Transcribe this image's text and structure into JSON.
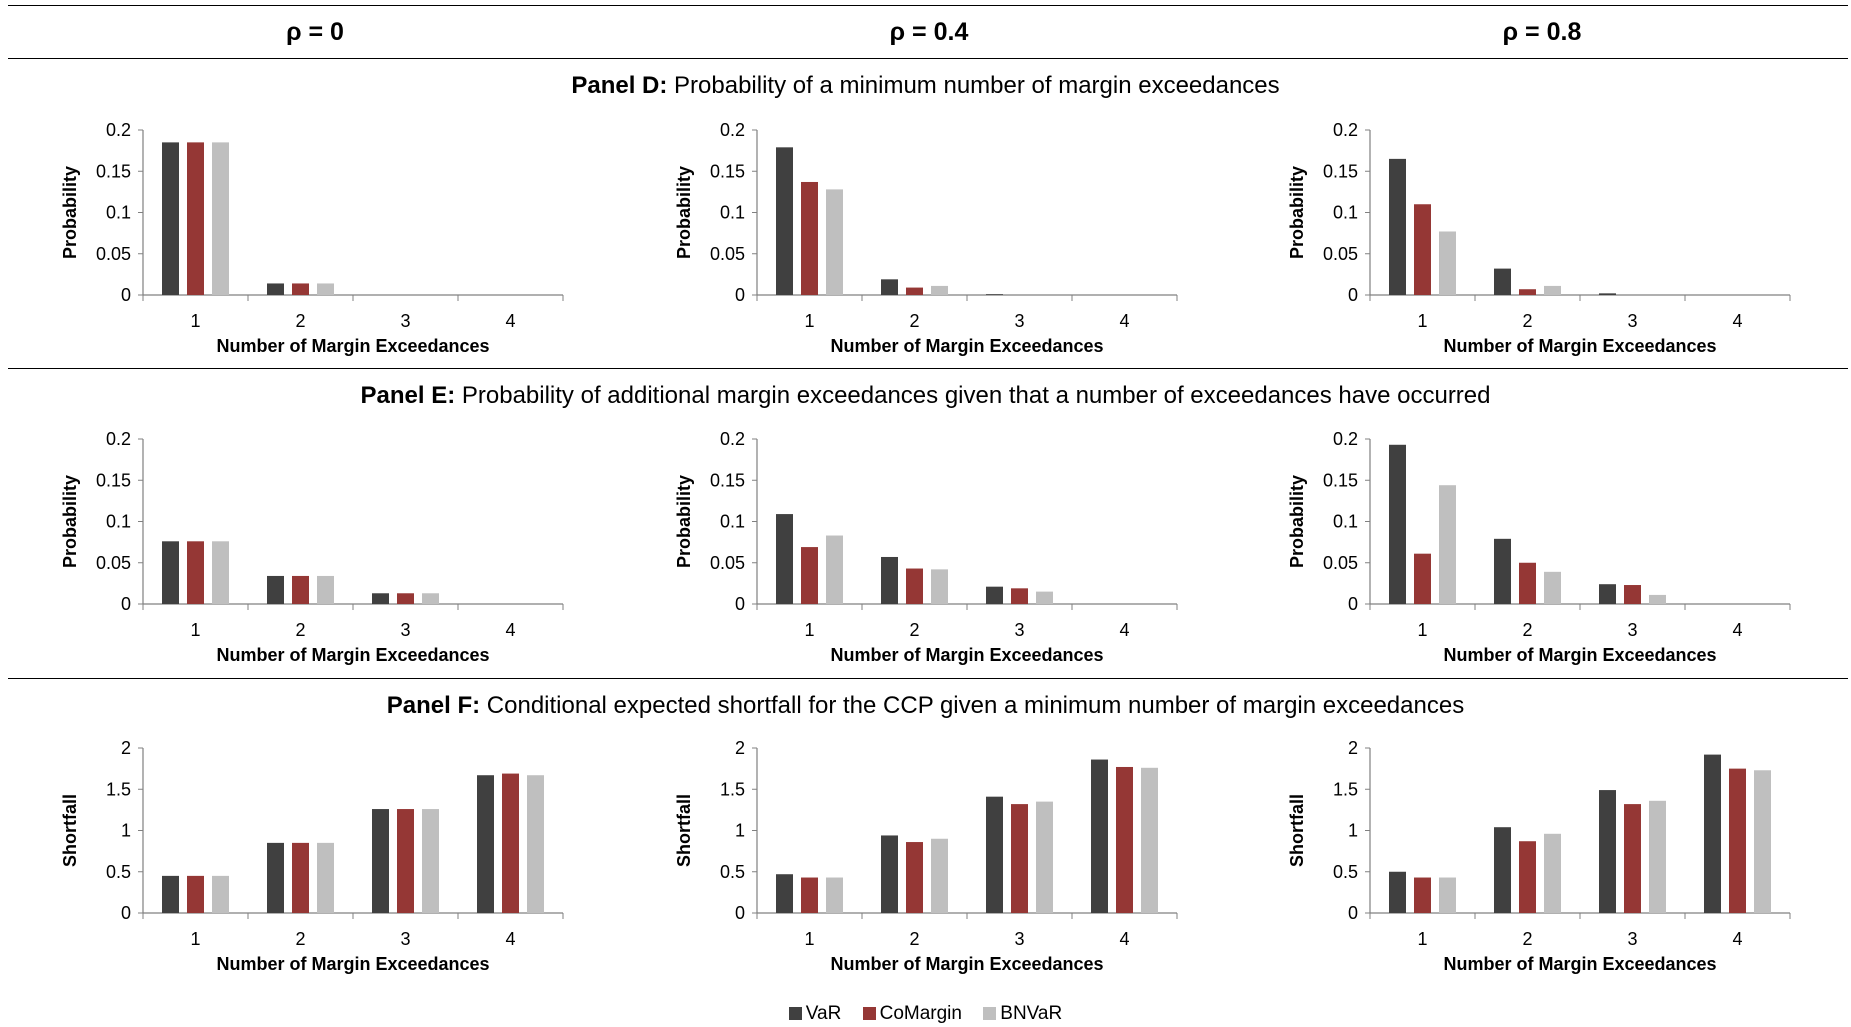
{
  "headers": [
    "ρ = 0",
    "ρ = 0.4",
    "ρ = 0.8"
  ],
  "panels": [
    {
      "label": "Panel D:",
      "text": " Probability of a minimum number of margin exceedances"
    },
    {
      "label": "Panel E:",
      "text": " Probability of additional margin exceedances given that a number of exceedances have occurred"
    },
    {
      "label": "Panel F:",
      "text": " Conditional expected shortfall for the CCP given a minimum number of margin exceedances"
    }
  ],
  "legend": [
    {
      "name": "VaR",
      "color": "#404040"
    },
    {
      "name": "CoMargin",
      "color": "#953735"
    },
    {
      "name": "BNVaR",
      "color": "#bfbfbf"
    }
  ],
  "chart_data": [
    {
      "type": "bar",
      "panel": "D",
      "rho": "ρ = 0",
      "categories": [
        "1",
        "2",
        "3",
        "4"
      ],
      "xlabel": "Number of Margin Exceedances",
      "ylabel": "Probability",
      "ylim": [
        0,
        0.2
      ],
      "yticks": [
        "0",
        "0.05",
        "0.1",
        "0.15",
        "0.2"
      ],
      "series": [
        {
          "name": "VaR",
          "values": [
            0.185,
            0.014,
            0,
            0
          ]
        },
        {
          "name": "CoMargin",
          "values": [
            0.185,
            0.014,
            0,
            0
          ]
        },
        {
          "name": "BNVaR",
          "values": [
            0.185,
            0.014,
            0,
            0
          ]
        }
      ]
    },
    {
      "type": "bar",
      "panel": "D",
      "rho": "ρ = 0.4",
      "categories": [
        "1",
        "2",
        "3",
        "4"
      ],
      "xlabel": "Number of Margin Exceedances",
      "ylabel": "Probability",
      "ylim": [
        0,
        0.2
      ],
      "yticks": [
        "0",
        "0.05",
        "0.1",
        "0.15",
        "0.2"
      ],
      "series": [
        {
          "name": "VaR",
          "values": [
            0.179,
            0.019,
            0.001,
            0
          ]
        },
        {
          "name": "CoMargin",
          "values": [
            0.137,
            0.009,
            0,
            0
          ]
        },
        {
          "name": "BNVaR",
          "values": [
            0.128,
            0.011,
            0,
            0
          ]
        }
      ]
    },
    {
      "type": "bar",
      "panel": "D",
      "rho": "ρ = 0.8",
      "categories": [
        "1",
        "2",
        "3",
        "4"
      ],
      "xlabel": "Number of Margin Exceedances",
      "ylabel": "Probability",
      "ylim": [
        0,
        0.2
      ],
      "yticks": [
        "0",
        "0.05",
        "0.1",
        "0.15",
        "0.2"
      ],
      "series": [
        {
          "name": "VaR",
          "values": [
            0.165,
            0.032,
            0.002,
            0
          ]
        },
        {
          "name": "CoMargin",
          "values": [
            0.11,
            0.007,
            0,
            0
          ]
        },
        {
          "name": "BNVaR",
          "values": [
            0.077,
            0.011,
            0,
            0
          ]
        }
      ]
    },
    {
      "type": "bar",
      "panel": "E",
      "rho": "ρ = 0",
      "categories": [
        "1",
        "2",
        "3",
        "4"
      ],
      "xlabel": "Number of Margin Exceedances",
      "ylabel": "Probability",
      "ylim": [
        0,
        0.2
      ],
      "yticks": [
        "0",
        "0.05",
        "0.1",
        "0.15",
        "0.2"
      ],
      "series": [
        {
          "name": "VaR",
          "values": [
            0.076,
            0.034,
            0.013,
            0
          ]
        },
        {
          "name": "CoMargin",
          "values": [
            0.076,
            0.034,
            0.013,
            0
          ]
        },
        {
          "name": "BNVaR",
          "values": [
            0.076,
            0.034,
            0.013,
            0
          ]
        }
      ]
    },
    {
      "type": "bar",
      "panel": "E",
      "rho": "ρ = 0.4",
      "categories": [
        "1",
        "2",
        "3",
        "4"
      ],
      "xlabel": "Number of Margin Exceedances",
      "ylabel": "Probability",
      "ylim": [
        0,
        0.2
      ],
      "yticks": [
        "0",
        "0.05",
        "0.1",
        "0.15",
        "0.2"
      ],
      "series": [
        {
          "name": "VaR",
          "values": [
            0.109,
            0.057,
            0.021,
            0
          ]
        },
        {
          "name": "CoMargin",
          "values": [
            0.069,
            0.043,
            0.019,
            0
          ]
        },
        {
          "name": "BNVaR",
          "values": [
            0.083,
            0.042,
            0.015,
            0
          ]
        }
      ]
    },
    {
      "type": "bar",
      "panel": "E",
      "rho": "ρ = 0.8",
      "categories": [
        "1",
        "2",
        "3",
        "4"
      ],
      "xlabel": "Number of Margin Exceedances",
      "ylabel": "Probability",
      "ylim": [
        0,
        0.2
      ],
      "yticks": [
        "0",
        "0.05",
        "0.1",
        "0.15",
        "0.2"
      ],
      "series": [
        {
          "name": "VaR",
          "values": [
            0.193,
            0.079,
            0.024,
            0
          ]
        },
        {
          "name": "CoMargin",
          "values": [
            0.061,
            0.05,
            0.023,
            0
          ]
        },
        {
          "name": "BNVaR",
          "values": [
            0.144,
            0.039,
            0.011,
            0
          ]
        }
      ]
    },
    {
      "type": "bar",
      "panel": "F",
      "rho": "ρ = 0",
      "categories": [
        "1",
        "2",
        "3",
        "4"
      ],
      "xlabel": "Number of Margin Exceedances",
      "ylabel": "Shortfall",
      "ylim": [
        0,
        2
      ],
      "yticks": [
        "0",
        "0.5",
        "1",
        "1.5",
        "2"
      ],
      "series": [
        {
          "name": "VaR",
          "values": [
            0.45,
            0.85,
            1.26,
            1.67
          ]
        },
        {
          "name": "CoMargin",
          "values": [
            0.45,
            0.85,
            1.26,
            1.69
          ]
        },
        {
          "name": "BNVaR",
          "values": [
            0.45,
            0.85,
            1.26,
            1.67
          ]
        }
      ]
    },
    {
      "type": "bar",
      "panel": "F",
      "rho": "ρ = 0.4",
      "categories": [
        "1",
        "2",
        "3",
        "4"
      ],
      "xlabel": "Number of Margin Exceedances",
      "ylabel": "Shortfall",
      "ylim": [
        0,
        2
      ],
      "yticks": [
        "0",
        "0.5",
        "1",
        "1.5",
        "2"
      ],
      "series": [
        {
          "name": "VaR",
          "values": [
            0.47,
            0.94,
            1.41,
            1.86
          ]
        },
        {
          "name": "CoMargin",
          "values": [
            0.43,
            0.86,
            1.32,
            1.77
          ]
        },
        {
          "name": "BNVaR",
          "values": [
            0.43,
            0.9,
            1.35,
            1.76
          ]
        }
      ]
    },
    {
      "type": "bar",
      "panel": "F",
      "rho": "ρ = 0.8",
      "categories": [
        "1",
        "2",
        "3",
        "4"
      ],
      "xlabel": "Number of Margin Exceedances",
      "ylabel": "Shortfall",
      "ylim": [
        0,
        2
      ],
      "yticks": [
        "0",
        "0.5",
        "1",
        "1.5",
        "2"
      ],
      "series": [
        {
          "name": "VaR",
          "values": [
            0.5,
            1.04,
            1.49,
            1.92
          ]
        },
        {
          "name": "CoMargin",
          "values": [
            0.43,
            0.87,
            1.32,
            1.75
          ]
        },
        {
          "name": "BNVaR",
          "values": [
            0.43,
            0.96,
            1.36,
            1.73
          ]
        }
      ]
    }
  ]
}
